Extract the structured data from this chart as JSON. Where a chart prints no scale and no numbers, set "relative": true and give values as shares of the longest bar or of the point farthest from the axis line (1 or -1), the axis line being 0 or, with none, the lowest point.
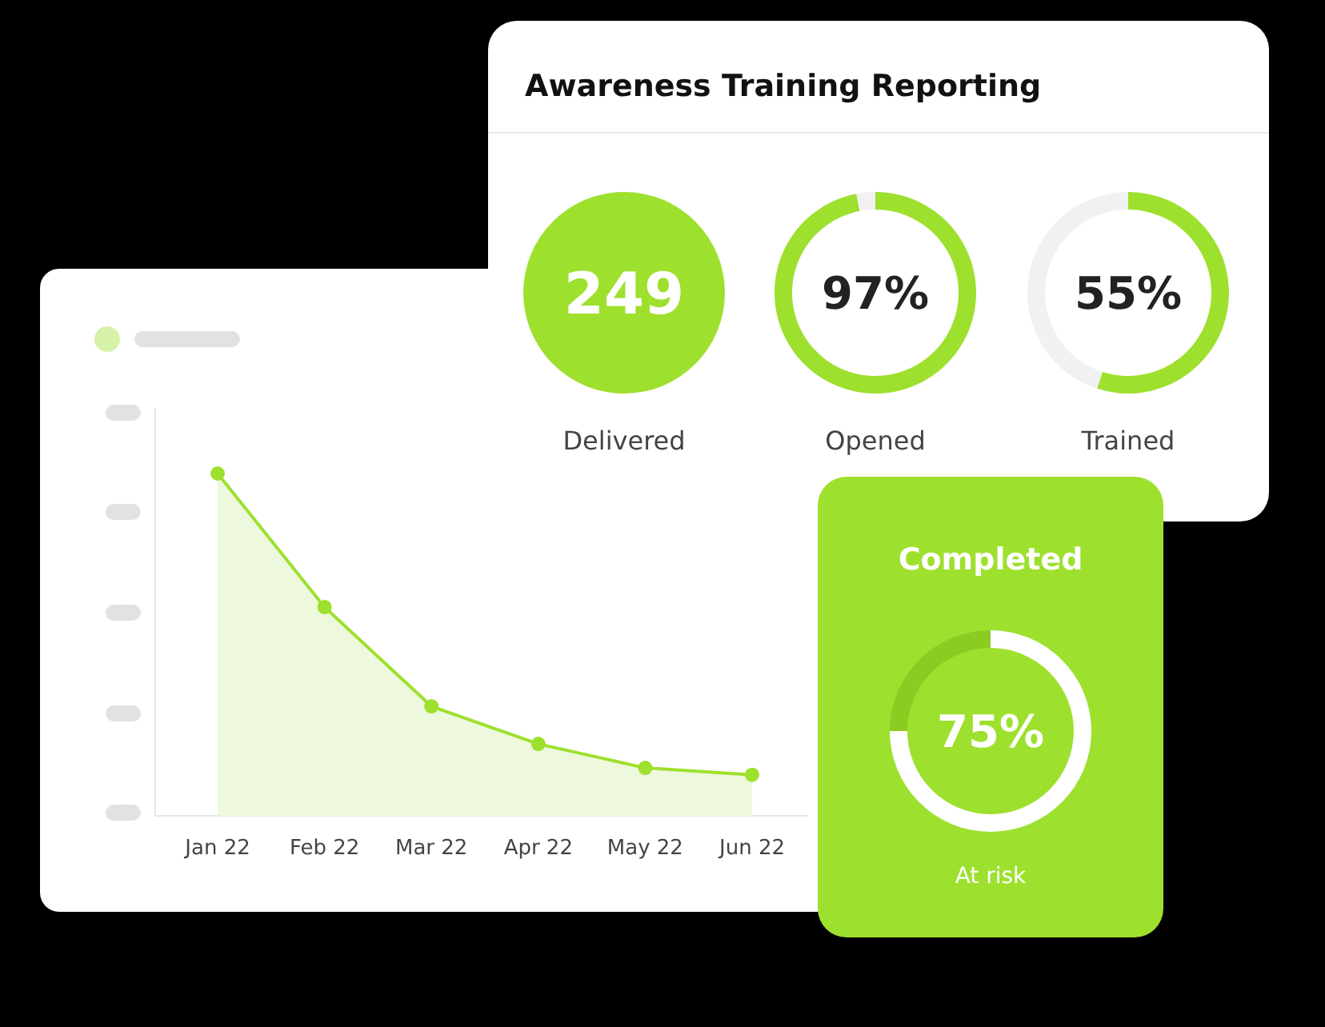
{
  "chart_data": [
    {
      "type": "area",
      "categories": [
        "Jan 22",
        "Feb 22",
        "Mar 22",
        "Apr 22",
        "May 22",
        "Jun 22"
      ],
      "values": [
        1,
        0.61,
        0.32,
        0.21,
        0.14,
        0.12
      ],
      "relative": true,
      "color": "#9ee02e",
      "marker": "circle"
    },
    {
      "type": "other",
      "title": "Awareness Training Reporting",
      "categories": [
        "Delivered"
      ],
      "values": [
        249
      ],
      "color": "#9ee02e",
      "data_labels": true
    },
    {
      "type": "donut",
      "title": "Opened",
      "categories": [
        null,
        null
      ],
      "values": [
        97,
        3
      ],
      "colors": [
        "#9ee02e",
        "#f1f1f1"
      ],
      "value_labels": [
        "97%",
        null
      ]
    },
    {
      "type": "donut",
      "title": "Trained",
      "categories": [
        null,
        null
      ],
      "values": [
        55,
        45
      ],
      "colors": [
        "#9ee02e",
        "#f1f1f1"
      ],
      "value_labels": [
        "55%",
        null
      ]
    },
    {
      "type": "donut",
      "title": "Completed",
      "categories": [
        null,
        null
      ],
      "values": [
        75,
        25
      ],
      "colors": [
        "#ffffff",
        "#8ccc22"
      ],
      "value_labels": [
        "75%",
        null
      ],
      "annotations": [
        "At risk"
      ]
    }
  ]
}
